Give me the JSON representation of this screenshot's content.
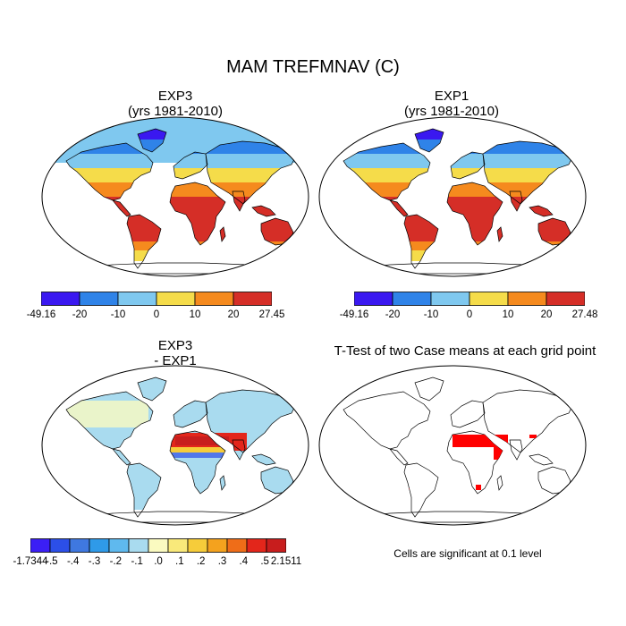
{
  "figure": {
    "title": "MAM TREFMNAV (C)"
  },
  "panels": {
    "p1": {
      "title_line1": "EXP3",
      "title_line2": "(yrs 1981-2010)"
    },
    "p2": {
      "title_line1": "EXP1",
      "title_line2": "(yrs 1981-2010)"
    },
    "p3": {
      "title_line1": "EXP3",
      "title_line2": "- EXP1"
    },
    "p4": {
      "title": "T-Test of two Case means at each grid point",
      "note": "Cells are significant at 0.1 level"
    }
  },
  "colorbars": {
    "abs1": {
      "labels": [
        "-49.16",
        "-20",
        "-10",
        "0",
        "10",
        "20",
        "27.45"
      ],
      "colors": [
        "#3a18f0",
        "#2f83e8",
        "#7fc8ef",
        "#f5dc4a",
        "#f58a1e",
        "#d52e27"
      ]
    },
    "abs2": {
      "labels": [
        "-49.16",
        "-20",
        "-10",
        "0",
        "10",
        "20",
        "27.48"
      ],
      "colors": [
        "#3a18f0",
        "#2f83e8",
        "#7fc8ef",
        "#f5dc4a",
        "#f58a1e",
        "#d52e27"
      ]
    },
    "diff": {
      "labels": [
        "-1.7344",
        "-.5",
        "-.4",
        "-.3",
        "-.2",
        "-.1",
        ".0",
        ".1",
        ".2",
        ".3",
        ".4",
        ".5",
        "2.1511"
      ],
      "colors": [
        "#3b1ff5",
        "#2c4fe8",
        "#3f78e0",
        "#2f9ae8",
        "#5fb9ee",
        "#a9dbef",
        "#fafac0",
        "#f9e97a",
        "#f6cc3a",
        "#f4a21e",
        "#ef6d18",
        "#e3261b",
        "#c81d1d"
      ]
    }
  },
  "significance_color": "#ff0000"
}
